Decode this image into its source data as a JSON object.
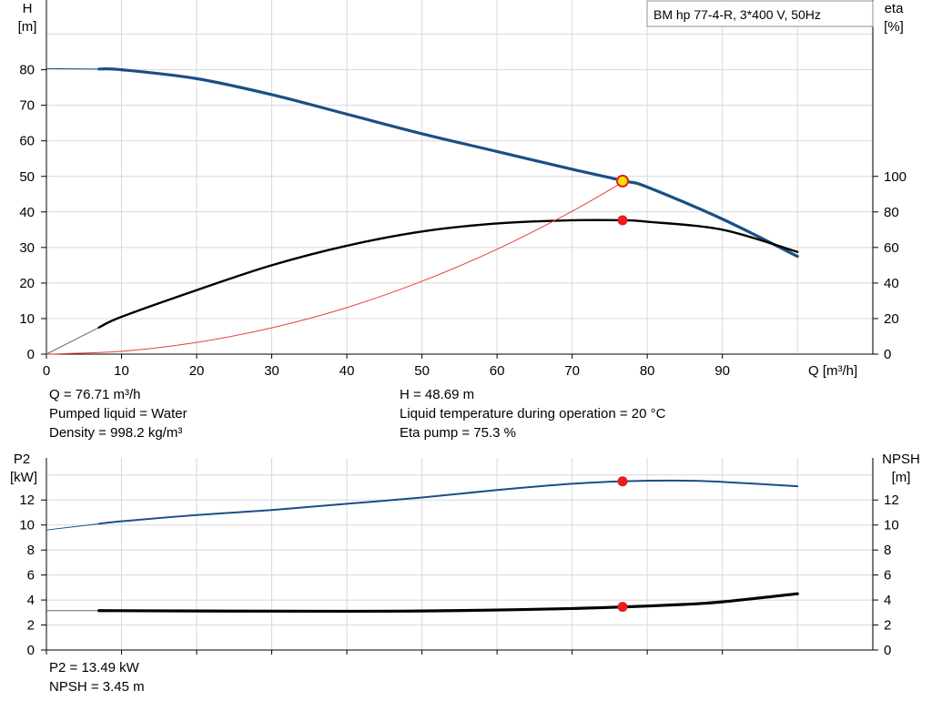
{
  "title_box": "BM hp 77-4-R, 3*400 V, 50Hz",
  "colors": {
    "head_curve": "#1a4f85",
    "eta_curve": "#000000",
    "system_curve": "#e8403a",
    "marker": "#ee1c1c",
    "marker_ring": "#f2e200",
    "grid": "#d8d8d8"
  },
  "top_info": {
    "q": "Q = 76.71 m³/h",
    "liquid": "Pumped liquid = Water",
    "density": "Density = 998.2 kg/m³",
    "h": "H = 48.69 m",
    "temp": "Liquid temperature during operation = 20 °C",
    "eta_pump": "Eta pump = 75.3 %"
  },
  "bottom_info": {
    "p2": "P2 = 13.49 kW",
    "npsh": "NPSH = 3.45 m"
  },
  "chart_data": [
    {
      "type": "line",
      "ylabel_left": [
        "H",
        "[m]"
      ],
      "ylabel_right": [
        "eta",
        "[%]"
      ],
      "xlabel": "Q [m³/h]",
      "xlim": [
        0,
        110
      ],
      "xticks": [
        0,
        10,
        20,
        30,
        40,
        50,
        60,
        70,
        80,
        90
      ],
      "ylim_left": [
        0,
        95
      ],
      "yticks_left": [
        0,
        10,
        20,
        30,
        40,
        50,
        60,
        70,
        80
      ],
      "ylim_right": [
        0,
        190
      ],
      "yticks_right": [
        0,
        20,
        40,
        60,
        80,
        100
      ],
      "grid": true,
      "series": [
        {
          "axis": "left",
          "role": "head",
          "x": [
            0,
            7,
            10,
            20,
            30,
            40,
            50,
            60,
            70,
            77,
            80,
            90,
            100
          ],
          "values": [
            80.3,
            80.2,
            80.0,
            77.5,
            73.0,
            67.5,
            62.0,
            57.0,
            52.0,
            48.7,
            47.0,
            38.0,
            27.5
          ]
        },
        {
          "axis": "right",
          "role": "eta",
          "x": [
            0,
            7,
            10,
            20,
            30,
            40,
            50,
            60,
            70,
            77,
            80,
            90,
            100
          ],
          "values": [
            0,
            15,
            21,
            36,
            50,
            61,
            69,
            73.5,
            75.3,
            75.3,
            74.5,
            70,
            57.5
          ]
        },
        {
          "axis": "left",
          "role": "system",
          "x": [
            0,
            10,
            20,
            30,
            40,
            50,
            60,
            70,
            77
          ],
          "values": [
            0,
            0.8,
            3.3,
            7.4,
            13.1,
            20.5,
            29.5,
            40.2,
            48.7
          ]
        }
      ],
      "operating_point": {
        "q": 76.71,
        "h": 48.69,
        "eta": 75.3
      }
    },
    {
      "type": "line",
      "ylabel_left": [
        "P2",
        "[kW]"
      ],
      "ylabel_right": [
        "NPSH",
        "[m]"
      ],
      "xlim": [
        0,
        110
      ],
      "xticks": [
        0,
        10,
        20,
        30,
        40,
        50,
        60,
        70,
        80,
        90
      ],
      "ylim": [
        0,
        14
      ],
      "yticks": [
        0,
        2,
        4,
        6,
        8,
        10,
        12
      ],
      "grid": true,
      "series": [
        {
          "axis": "left",
          "role": "p2",
          "x": [
            0,
            7,
            10,
            20,
            30,
            40,
            50,
            60,
            70,
            77,
            85,
            90,
            100
          ],
          "values": [
            9.6,
            10.1,
            10.3,
            10.8,
            11.2,
            11.7,
            12.2,
            12.8,
            13.3,
            13.5,
            13.55,
            13.45,
            13.1
          ]
        },
        {
          "axis": "right",
          "role": "npsh",
          "x": [
            0,
            7,
            20,
            40,
            50,
            60,
            70,
            77,
            85,
            90,
            100
          ],
          "values": [
            3.15,
            3.15,
            3.12,
            3.1,
            3.12,
            3.2,
            3.32,
            3.45,
            3.65,
            3.85,
            4.5
          ]
        }
      ],
      "operating_point": {
        "q": 76.71,
        "p2": 13.49,
        "npsh": 3.45
      }
    }
  ]
}
